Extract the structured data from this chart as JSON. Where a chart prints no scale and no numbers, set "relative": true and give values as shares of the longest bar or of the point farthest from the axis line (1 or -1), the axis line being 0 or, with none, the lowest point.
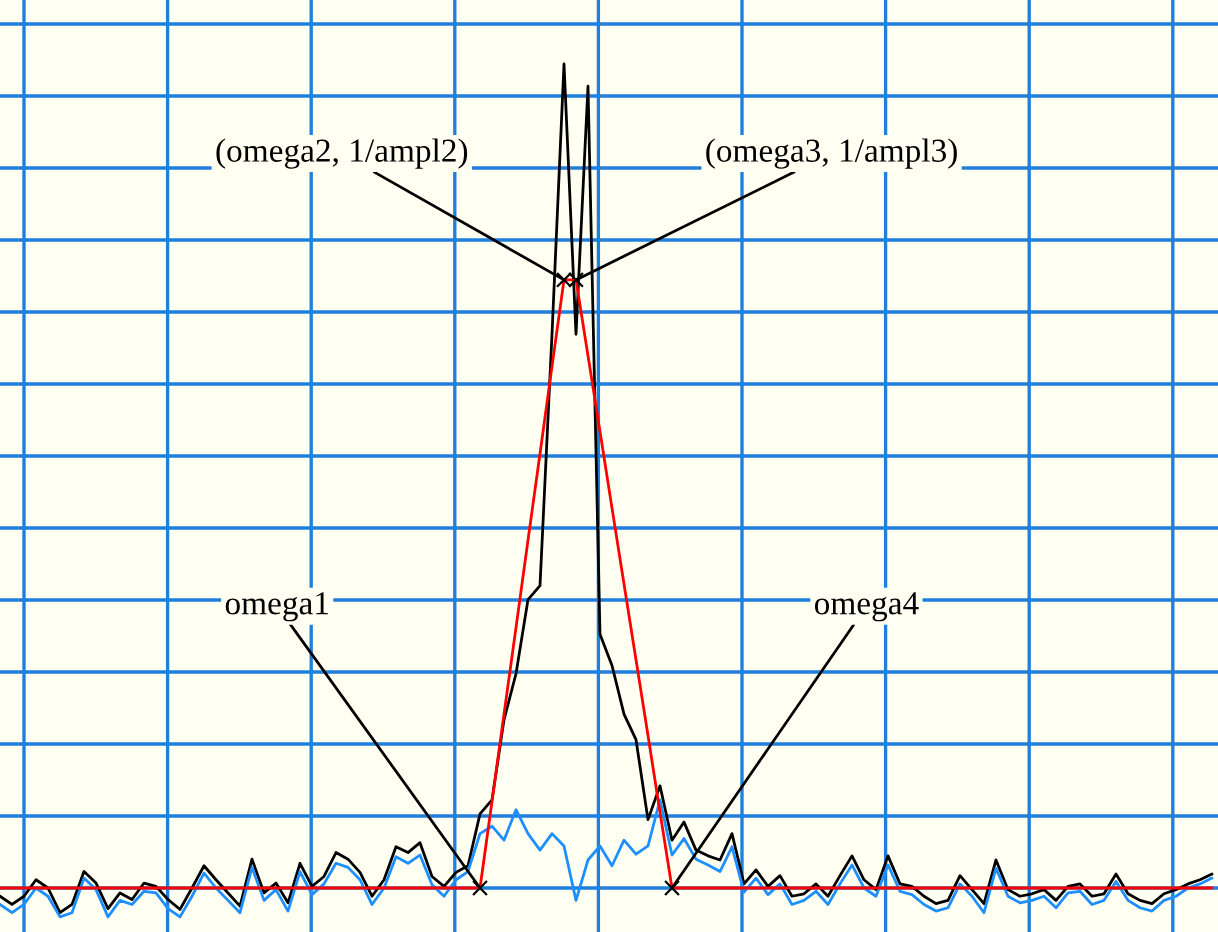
{
  "chart_data": {
    "type": "line",
    "relative": true,
    "grid": true,
    "categories": [
      null,
      null,
      null,
      null,
      null,
      null,
      null,
      null,
      null,
      null,
      null,
      null,
      null,
      null,
      null,
      null,
      null,
      null,
      null,
      null,
      null,
      null,
      null,
      null,
      null,
      null,
      null,
      null,
      null,
      null,
      null,
      null,
      null,
      null,
      null,
      null,
      null,
      null,
      null,
      null,
      null,
      null,
      null,
      null,
      null,
      null,
      null,
      null,
      null,
      null,
      null,
      null,
      null,
      null,
      null,
      null,
      null,
      null,
      null,
      null,
      null,
      null,
      null,
      null,
      null,
      null,
      null,
      null,
      null,
      null,
      null,
      null,
      null,
      null,
      null,
      null,
      null,
      null,
      null,
      null,
      null,
      null,
      null,
      null,
      null,
      null,
      null,
      null,
      null,
      null,
      null,
      null,
      null,
      null,
      null,
      null,
      null,
      null,
      null,
      null,
      null,
      null
    ],
    "series": [
      {
        "color": "#000000",
        "values": [
          -0.01,
          -0.02,
          -0.01,
          0.01,
          0,
          -0.03,
          -0.02,
          0.02,
          0.006,
          -0.025,
          -0.006,
          -0.014,
          0.006,
          0.002,
          -0.014,
          -0.026,
          0,
          0.027,
          0.01,
          -0.006,
          -0.022,
          0.035,
          -0.006,
          0.006,
          -0.018,
          0.03,
          0.002,
          0.014,
          0.043,
          0.035,
          0.019,
          -0.01,
          0.01,
          0.05,
          0.043,
          0.055,
          0.014,
          0.002,
          0.019,
          0.027,
          0.09,
          0.107,
          0.204,
          0.26,
          0.35,
          0.367,
          0.672,
          1,
          0.672,
          0.973,
          0.308,
          0.27,
          0.211,
          0.18,
          0.083,
          0.124,
          0.058,
          0.08,
          0.046,
          0.039,
          0.034,
          0.066,
          0.005,
          0.022,
          0.002,
          0.015,
          -0.01,
          -0.007,
          0.005,
          -0.01,
          0.015,
          0.039,
          0.01,
          -0.002,
          0.039,
          0.005,
          0.002,
          -0.01,
          -0.019,
          -0.015,
          0.015,
          -0.002,
          -0.019,
          0.034,
          -0.002,
          -0.01,
          -0.007,
          -0.002,
          -0.015,
          0.002,
          0.005,
          -0.01,
          -0.007,
          0.017,
          -0.007,
          -0.015,
          -0.019,
          -0.007,
          -0.002,
          0.005,
          0.01,
          0.017
        ]
      },
      {
        "color": "#1e8fff",
        "values": [
          -0.02,
          -0.03,
          -0.02,
          0.0,
          -0.01,
          -0.035,
          -0.03,
          0.012,
          -0.002,
          -0.035,
          -0.015,
          -0.02,
          -0.004,
          -0.006,
          -0.025,
          -0.035,
          -0.01,
          0.018,
          0.0,
          -0.015,
          -0.03,
          0.025,
          -0.015,
          -0.002,
          -0.028,
          0.02,
          -0.008,
          0.005,
          0.03,
          0.025,
          0.01,
          -0.02,
          0.0,
          0.038,
          0.03,
          0.04,
          0.004,
          -0.01,
          0.01,
          0.02,
          0.066,
          0.075,
          0.058,
          0.095,
          0.066,
          0.046,
          0.066,
          0.051,
          -0.015,
          0.034,
          0.051,
          0.027,
          0.058,
          0.041,
          0.051,
          0.107,
          0.04,
          0.06,
          0.035,
          0.028,
          0.02,
          0.05,
          -0.005,
          0.012,
          -0.008,
          0.005,
          -0.02,
          -0.015,
          -0.004,
          -0.02,
          0.005,
          0.028,
          0.0,
          -0.01,
          0.028,
          -0.004,
          -0.008,
          -0.02,
          -0.028,
          -0.024,
          0.005,
          -0.01,
          -0.03,
          0.024,
          -0.01,
          -0.018,
          -0.015,
          -0.01,
          -0.024,
          -0.006,
          -0.004,
          -0.02,
          -0.015,
          0.008,
          -0.015,
          -0.024,
          -0.028,
          -0.015,
          -0.01,
          0.0,
          0.005,
          0.012
        ]
      },
      {
        "color": "#ff0000",
        "values": [
          0,
          0,
          0,
          0,
          0,
          0,
          0,
          0,
          0,
          0,
          0,
          0,
          0,
          0,
          0,
          0,
          0,
          0,
          0,
          0,
          0,
          0,
          0,
          0,
          0,
          0,
          0,
          0,
          0,
          0,
          0,
          0,
          0,
          0,
          0,
          0,
          0,
          0,
          0,
          0,
          0,
          0.105,
          0.211,
          0.316,
          0.422,
          0.527,
          0.633,
          0.738,
          0.738,
          0.646,
          0.554,
          0.461,
          0.369,
          0.277,
          0.185,
          0.092,
          0,
          0,
          0,
          0,
          0,
          0,
          0,
          0,
          0,
          0,
          0,
          0,
          0,
          0,
          0,
          0,
          0,
          0,
          0,
          0,
          0,
          0,
          0,
          0,
          0,
          0,
          0,
          0,
          0,
          0,
          0,
          0,
          0,
          0,
          0,
          0,
          0,
          0,
          0,
          0,
          0,
          0,
          0,
          0,
          0,
          0
        ]
      }
    ],
    "annotations": [
      "omega1",
      "(omega2, 1/ampl2)",
      "(omega3, 1/ampl3)",
      "omega4"
    ]
  }
}
